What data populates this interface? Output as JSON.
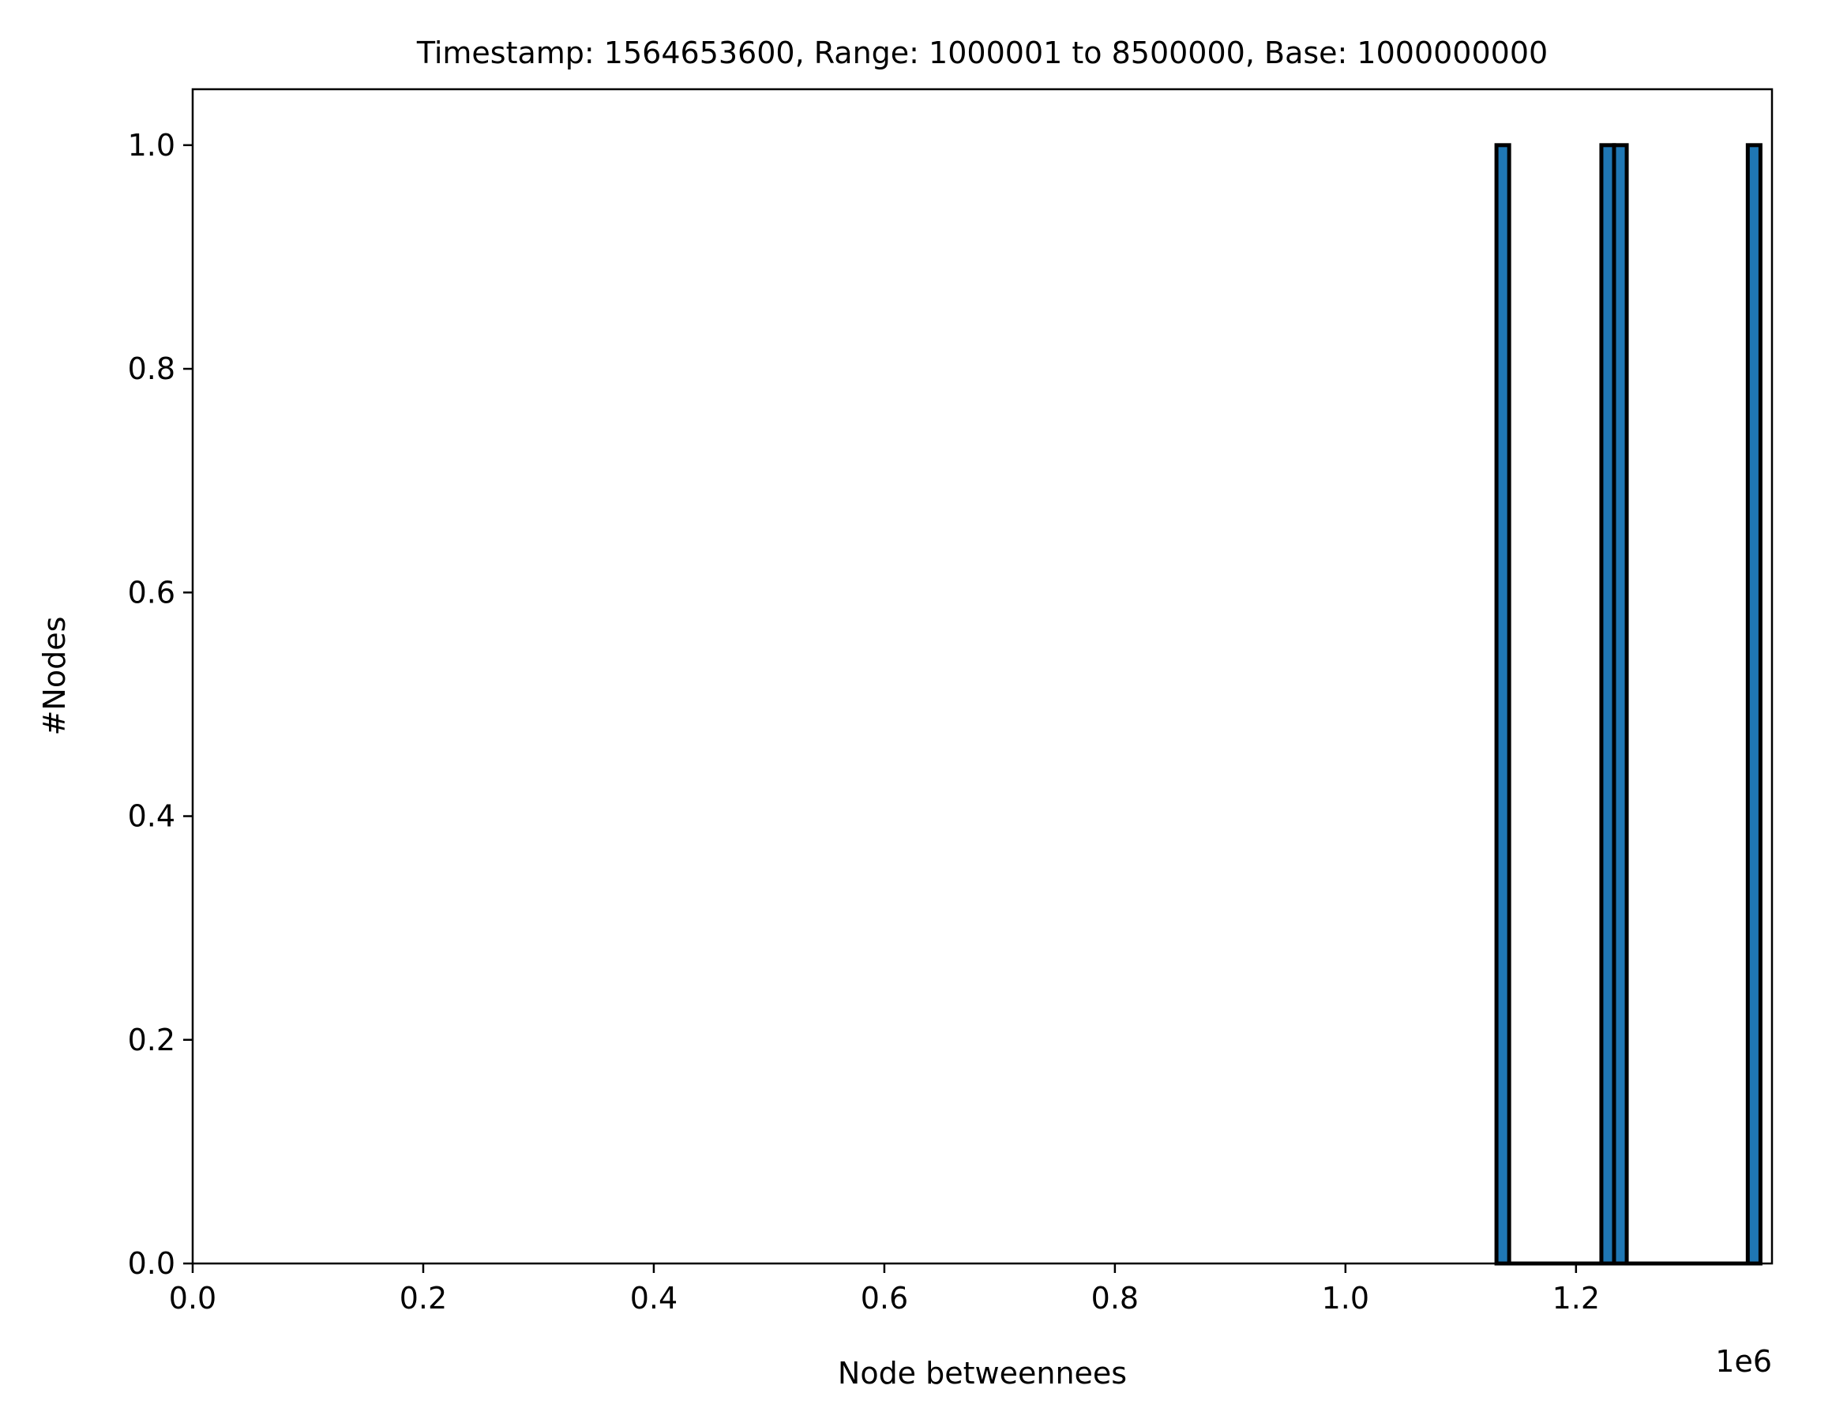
{
  "chart_data": {
    "type": "bar",
    "title": "Timestamp: 1564653600, Range: 1000001 to 8500000, Base: 1000000000",
    "xlabel": "Node betweennees",
    "ylabel": "#Nodes",
    "x_offset_label": "1e6",
    "xlim": [
      0,
      1370000
    ],
    "ylim": [
      0,
      1.05
    ],
    "x_ticks": [
      {
        "value": 0.0,
        "label": "0.0"
      },
      {
        "value": 0.2,
        "label": "0.2"
      },
      {
        "value": 0.4,
        "label": "0.4"
      },
      {
        "value": 0.6,
        "label": "0.6"
      },
      {
        "value": 0.8,
        "label": "0.8"
      },
      {
        "value": 1.0,
        "label": "1.0"
      },
      {
        "value": 1.2,
        "label": "1.2"
      }
    ],
    "y_ticks": [
      {
        "value": 0.0,
        "label": "0.0"
      },
      {
        "value": 0.2,
        "label": "0.2"
      },
      {
        "value": 0.4,
        "label": "0.4"
      },
      {
        "value": 0.6,
        "label": "0.6"
      },
      {
        "value": 0.8,
        "label": "0.8"
      },
      {
        "value": 1.0,
        "label": "1.0"
      }
    ],
    "bins": [
      {
        "x_start": 1131000,
        "x_end": 1142000,
        "count": 1
      },
      {
        "x_start": 1142000,
        "x_end": 1222000,
        "count": 0
      },
      {
        "x_start": 1222000,
        "x_end": 1233000,
        "count": 1
      },
      {
        "x_start": 1233000,
        "x_end": 1244000,
        "count": 1
      },
      {
        "x_start": 1244000,
        "x_end": 1349000,
        "count": 0
      },
      {
        "x_start": 1349000,
        "x_end": 1360000,
        "count": 1
      }
    ],
    "bar_color": "#1f77b4",
    "edge_color": "#000000",
    "grid": false,
    "legend": "none"
  }
}
